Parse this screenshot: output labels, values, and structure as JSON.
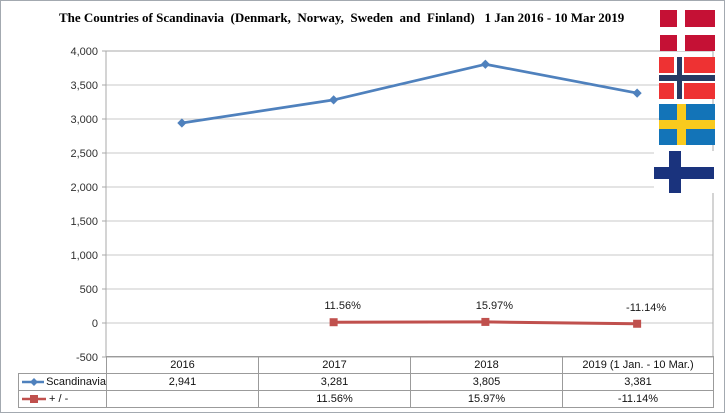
{
  "chart": {
    "title": "The Countries of Scandinavia  (Denmark,  Norway,  Sweden  and  Finland)   1 Jan 2016 - 10 Mar 2019"
  },
  "chart_data": {
    "type": "line",
    "title": "The Countries of Scandinavia (Denmark, Norway, Sweden and Finland) 1 Jan 2016 - 10 Mar 2019",
    "categories": [
      "2016",
      "2017",
      "2018",
      "2019 (1 Jan. - 10 Mar.)"
    ],
    "series": [
      {
        "name": "Scandinavia",
        "color": "#4f81bd",
        "marker": "diamond",
        "values": [
          2941,
          3281,
          3805,
          3381
        ],
        "data_labels": [
          "",
          "",
          "",
          ""
        ]
      },
      {
        "name": "+ / -",
        "color": "#c0504d",
        "marker": "square",
        "values": [
          null,
          11.56,
          15.97,
          -11.14
        ],
        "data_labels": [
          "",
          "11.56%",
          "15.97%",
          "-11.14%"
        ]
      }
    ],
    "ylim": [
      -500,
      4000
    ],
    "ytick_step": 500,
    "ytick_labels": [
      "4,000",
      "3,500",
      "3,000",
      "2,500",
      "2,000",
      "1,500",
      "1,000",
      "500",
      "0",
      "-500"
    ],
    "grid": true,
    "legend_position": "data-table-left"
  },
  "table": {
    "header_cells": [
      "2016",
      "2017",
      "2018",
      "2019 (1 Jan. - 10 Mar.)"
    ],
    "rows": [
      {
        "legend": "Scandinavia",
        "marker": "diamond",
        "color": "#4f81bd",
        "cells": [
          "2,941",
          "3,281",
          "3,805",
          "3,381"
        ]
      },
      {
        "legend": "+ / -",
        "marker": "square",
        "color": "#c0504d",
        "cells": [
          "",
          "11.56%",
          "15.97%",
          "-11.14%"
        ]
      }
    ]
  },
  "flags": [
    {
      "name": "denmark-flag-icon",
      "country": "Denmark",
      "field": "#c51135",
      "cross": "#ffffff"
    },
    {
      "name": "norway-flag-icon",
      "country": "Norway",
      "field": "#ee3233",
      "cross": "#273a64",
      "cross_outline": "#ffffff"
    },
    {
      "name": "sweden-flag-icon",
      "country": "Sweden",
      "field": "#1374b8",
      "cross": "#f9ca1d"
    },
    {
      "name": "finland-flag-icon",
      "country": "Finland",
      "field": "#ffffff",
      "cross": "#1a337d"
    }
  ],
  "colors": {
    "series_blue": "#4f81bd",
    "series_red": "#c0504d",
    "gridline": "#c9c9c9",
    "plot_border": "#a9a9a9",
    "axis_text": "#303030"
  }
}
